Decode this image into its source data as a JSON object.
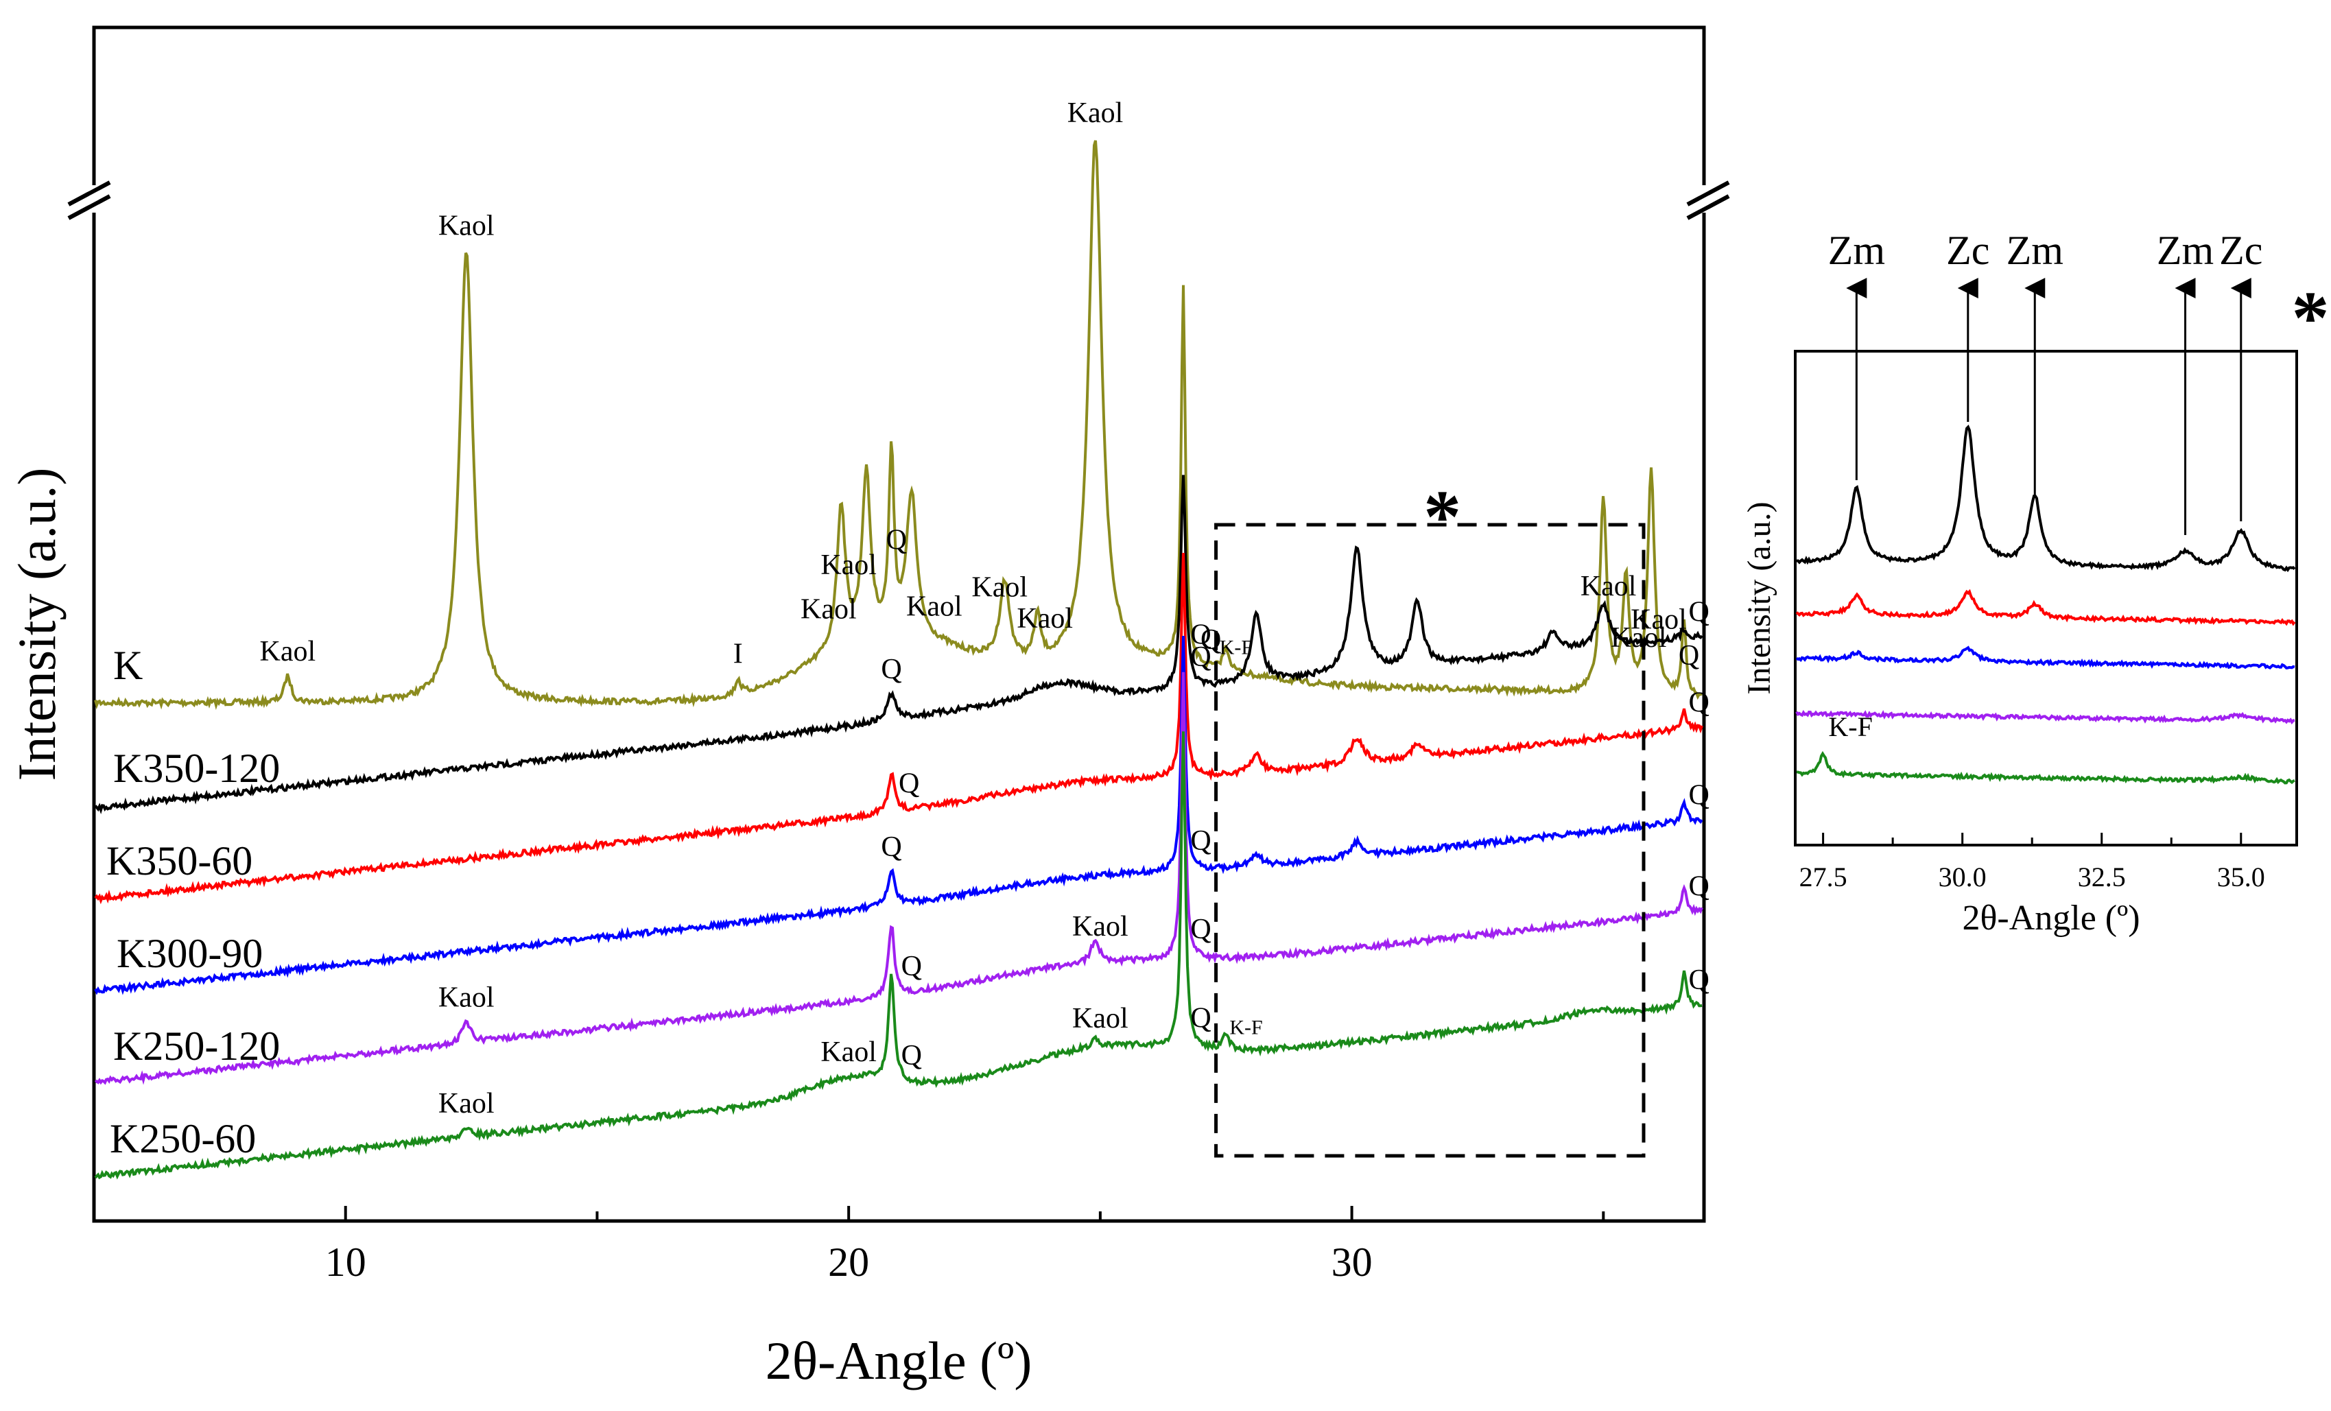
{
  "chart_data": [
    {
      "type": "line",
      "xlabel": "2θ-Angle (º)",
      "ylabel": "Intensity (a.u.)",
      "xlim": [
        5,
        37
      ],
      "xticks": [
        10,
        20,
        30
      ],
      "axis_break": true,
      "series": [
        {
          "name": "K",
          "color": "#8B8B1E",
          "baseline": 0.0,
          "noise": 0.015,
          "peaks": [
            [
              8.85,
              0.35,
              0.08
            ],
            [
              12.4,
              6.0,
              0.16
            ],
            [
              17.8,
              0.2,
              0.06
            ],
            [
              19.85,
              1.9,
              0.1
            ],
            [
              20.35,
              2.2,
              0.1
            ],
            [
              20.85,
              2.4,
              0.06
            ],
            [
              21.25,
              1.9,
              0.12
            ],
            [
              23.1,
              1.05,
              0.12
            ],
            [
              23.75,
              0.6,
              0.08
            ],
            [
              24.9,
              7.0,
              0.16
            ],
            [
              26.65,
              5.0,
              0.05
            ],
            [
              27.5,
              0.3,
              0.08
            ],
            [
              35.0,
              2.6,
              0.08
            ],
            [
              35.45,
              1.5,
              0.08
            ],
            [
              35.95,
              3.0,
              0.08
            ],
            [
              36.6,
              1.0,
              0.05
            ]
          ],
          "bumps": [
            [
              20.8,
              0.8,
              1.5
            ],
            [
              25.5,
              0.45,
              2.2
            ],
            [
              31.5,
              0.18,
              3.5
            ]
          ]
        },
        {
          "name": "K350-120",
          "color": "#000000",
          "baseline": 0.0,
          "tilt": 0.55,
          "noise": 0.02,
          "peaks": [
            [
              20.85,
              0.35,
              0.1
            ],
            [
              26.65,
              2.85,
              0.06
            ],
            [
              28.1,
              0.9,
              0.13
            ],
            [
              30.1,
              1.65,
              0.15
            ],
            [
              31.3,
              0.85,
              0.13
            ],
            [
              34.0,
              0.25,
              0.15
            ],
            [
              35.0,
              0.55,
              0.15
            ],
            [
              36.6,
              0.12,
              0.07
            ]
          ],
          "bumps": [
            [
              24.2,
              0.2,
              0.6
            ],
            [
              23.5,
              0.1,
              2.0
            ]
          ]
        },
        {
          "name": "K350-60",
          "color": "#FF0000",
          "baseline": 0.0,
          "tilt": 0.6,
          "noise": 0.02,
          "peaks": [
            [
              20.85,
              0.5,
              0.08
            ],
            [
              26.65,
              2.95,
              0.05
            ],
            [
              28.1,
              0.25,
              0.13
            ],
            [
              30.1,
              0.35,
              0.15
            ],
            [
              31.3,
              0.18,
              0.13
            ],
            [
              36.6,
              0.25,
              0.06
            ]
          ],
          "bumps": [
            [
              24.5,
              0.15,
              1.8
            ]
          ]
        },
        {
          "name": "K300-90",
          "color": "#0000FF",
          "baseline": 0.0,
          "tilt": 0.6,
          "noise": 0.02,
          "peaks": [
            [
              20.85,
              0.45,
              0.08
            ],
            [
              26.65,
              3.1,
              0.05
            ],
            [
              28.1,
              0.15,
              0.13
            ],
            [
              30.1,
              0.2,
              0.15
            ],
            [
              36.6,
              0.25,
              0.06
            ]
          ],
          "bumps": [
            [
              24.5,
              0.12,
              1.8
            ]
          ]
        },
        {
          "name": "K250-120",
          "color": "#A020F0",
          "baseline": 0.0,
          "tilt": 0.6,
          "noise": 0.02,
          "peaks": [
            [
              12.4,
              0.28,
              0.1
            ],
            [
              20.85,
              0.95,
              0.07
            ],
            [
              24.9,
              0.3,
              0.1
            ],
            [
              26.65,
              3.8,
              0.05
            ],
            [
              36.6,
              0.35,
              0.06
            ]
          ],
          "bumps": [
            [
              24.5,
              0.18,
              1.8
            ]
          ]
        },
        {
          "name": "K250-60",
          "color": "#1A8A1A",
          "baseline": 0.0,
          "tilt": 0.65,
          "noise": 0.02,
          "peaks": [
            [
              12.4,
              0.12,
              0.1
            ],
            [
              20.85,
              1.4,
              0.07
            ],
            [
              24.9,
              0.1,
              0.1
            ],
            [
              26.65,
              4.2,
              0.05
            ],
            [
              27.5,
              0.2,
              0.08
            ],
            [
              36.6,
              0.45,
              0.06
            ]
          ],
          "bumps": [
            [
              20.0,
              0.25,
              0.8
            ],
            [
              25.0,
              0.3,
              1.5
            ],
            [
              34.8,
              0.08,
              0.5
            ]
          ]
        }
      ],
      "labels": [
        {
          "text": "K",
          "series": 0
        },
        {
          "text": "K350-120",
          "series": 1
        },
        {
          "text": "K350-60",
          "series": 2
        },
        {
          "text": "K300-90",
          "series": 3
        },
        {
          "text": "K250-120",
          "series": 4
        },
        {
          "text": "K250-60",
          "series": 5
        }
      ],
      "annotations": [
        {
          "text": "Kaol",
          "x": 8.85,
          "series": 0
        },
        {
          "text": "Kaol",
          "x": 12.4,
          "series": 0
        },
        {
          "text": "I",
          "x": 17.8,
          "series": 0
        },
        {
          "text": "Kaol",
          "x": 19.6,
          "series": 0
        },
        {
          "text": "Kaol",
          "x": 20.0,
          "series": 0
        },
        {
          "text": "Q",
          "x": 20.95,
          "series": 0
        },
        {
          "text": "Kaol",
          "x": 21.7,
          "series": 0
        },
        {
          "text": "Kaol",
          "x": 23.0,
          "series": 0
        },
        {
          "text": "Kaol",
          "x": 23.9,
          "series": 0
        },
        {
          "text": "Kaol",
          "x": 24.9,
          "series": 0
        },
        {
          "text": "Q",
          "x": 27.2,
          "series": 0
        },
        {
          "text": "Q",
          "x": 27.0,
          "series": 0
        },
        {
          "text": "K-F",
          "x": 27.7,
          "series": 0
        },
        {
          "text": "Kaol",
          "x": 35.1,
          "series": 0
        },
        {
          "text": "Kaol",
          "x": 36.1,
          "series": 0
        },
        {
          "text": "Kaol",
          "x": 35.7,
          "series": 0
        },
        {
          "text": "Q",
          "x": 36.7,
          "series": 0
        },
        {
          "text": "Q",
          "x": 20.85,
          "series": 1
        },
        {
          "text": "Q",
          "x": 27.0,
          "series": 1
        },
        {
          "text": "Q",
          "x": 36.9,
          "series": 1
        },
        {
          "text": "Q",
          "x": 21.2,
          "series": 2
        },
        {
          "text": "Q",
          "x": 36.9,
          "series": 2
        },
        {
          "text": "Q",
          "x": 20.85,
          "series": 3
        },
        {
          "text": "Q",
          "x": 27.0,
          "series": 3
        },
        {
          "text": "Q",
          "x": 36.9,
          "series": 3
        },
        {
          "text": "Kaol",
          "x": 12.4,
          "series": 4
        },
        {
          "text": "Q",
          "x": 21.25,
          "series": 4
        },
        {
          "text": "Kaol",
          "x": 25.0,
          "series": 4
        },
        {
          "text": "Q",
          "x": 27.0,
          "series": 4
        },
        {
          "text": "Q",
          "x": 36.9,
          "series": 4
        },
        {
          "text": "Kaol",
          "x": 12.4,
          "series": 5
        },
        {
          "text": "Kaol",
          "x": 20.0,
          "series": 5
        },
        {
          "text": "Q",
          "x": 21.25,
          "series": 5
        },
        {
          "text": "Kaol",
          "x": 25.0,
          "series": 5
        },
        {
          "text": "Q",
          "x": 27.0,
          "series": 5
        },
        {
          "text": "K-F",
          "x": 27.9,
          "series": 5
        },
        {
          "text": "Q",
          "x": 36.9,
          "series": 5
        }
      ],
      "region_box": {
        "x": [
          27.3,
          35.8
        ],
        "label": "*"
      }
    },
    {
      "type": "line",
      "xlabel": "2θ-Angle (º)",
      "ylabel": "Intensity (a.u.)",
      "xlim": [
        27.0,
        36.0
      ],
      "xticks": [
        27.5,
        30.0,
        32.5,
        35.0
      ],
      "xtick_labels": [
        "27.5",
        "30.0",
        "32.5",
        "35.0"
      ],
      "title_mark": "*",
      "series": [
        {
          "name": "K350-120",
          "color": "#000000",
          "peaks": [
            [
              28.1,
              0.55,
              0.13
            ],
            [
              30.1,
              1.0,
              0.15
            ],
            [
              31.3,
              0.5,
              0.13
            ],
            [
              34.0,
              0.12,
              0.2
            ],
            [
              35.0,
              0.28,
              0.18
            ]
          ]
        },
        {
          "name": "K350-60",
          "color": "#FF0000",
          "peaks": [
            [
              28.1,
              0.14,
              0.13
            ],
            [
              30.1,
              0.18,
              0.15
            ],
            [
              31.3,
              0.1,
              0.13
            ]
          ]
        },
        {
          "name": "K300-90",
          "color": "#0000FF",
          "peaks": [
            [
              28.1,
              0.05,
              0.13
            ],
            [
              30.1,
              0.09,
              0.15
            ]
          ]
        },
        {
          "name": "K250-120",
          "color": "#A020F0",
          "peaks": [
            [
              35.0,
              0.04,
              0.3
            ]
          ]
        },
        {
          "name": "K250-60",
          "color": "#1A8A1A",
          "peaks": [
            [
              27.5,
              0.15,
              0.08
            ],
            [
              35.0,
              0.03,
              0.3
            ]
          ]
        }
      ],
      "phase_markers": [
        {
          "text": "Zm",
          "x": 28.1
        },
        {
          "text": "Zc",
          "x": 30.1
        },
        {
          "text": "Zm",
          "x": 31.3
        },
        {
          "text": "Zm",
          "x": 34.0
        },
        {
          "text": "Zc",
          "x": 35.0
        }
      ],
      "annotations": [
        {
          "text": "K-F",
          "x": 27.5,
          "series": 4
        }
      ]
    }
  ]
}
